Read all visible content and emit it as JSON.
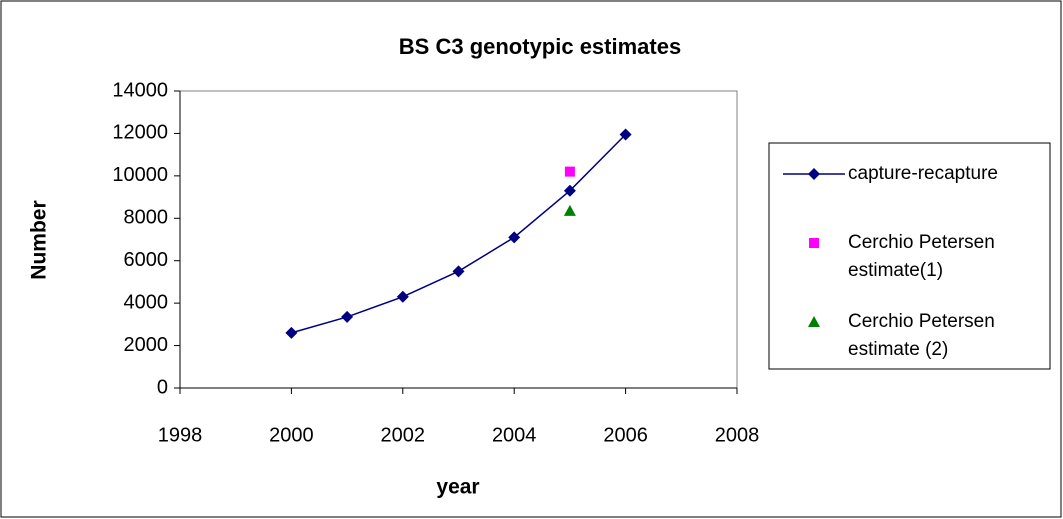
{
  "chart_data": {
    "type": "scatter",
    "title": "BS C3 genotypic estimates",
    "x_label": "year",
    "y_label": "Number",
    "xlim": [
      1998,
      2008
    ],
    "xticks": [
      1998,
      2000,
      2002,
      2004,
      2006,
      2008
    ],
    "ylim": [
      0,
      14000
    ],
    "yticks": [
      0,
      2000,
      4000,
      6000,
      8000,
      10000,
      12000,
      14000
    ],
    "grid": false,
    "legend": "right",
    "series": [
      {
        "name": "capture-recapture",
        "color": "#000080",
        "marker": "diamond",
        "line": true,
        "x": [
          2000,
          2001,
          2002,
          2003,
          2004,
          2005,
          2006
        ],
        "values": [
          2600,
          3350,
          4300,
          5500,
          7100,
          9300,
          11950
        ]
      },
      {
        "name": "Cerchio Petersen estimate(1)",
        "color": "#ff00ff",
        "marker": "square",
        "line": false,
        "x": [
          2005
        ],
        "values": [
          10200
        ]
      },
      {
        "name": "Cerchio Petersen estimate (2)",
        "color": "#008000",
        "marker": "triangle",
        "line": false,
        "x": [
          2005
        ],
        "values": [
          8350
        ]
      }
    ]
  }
}
